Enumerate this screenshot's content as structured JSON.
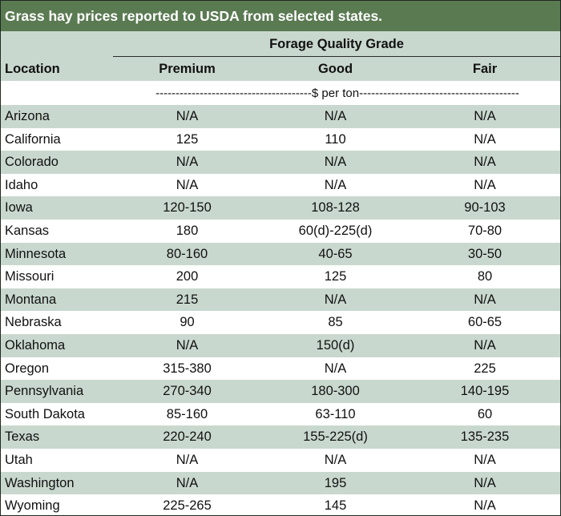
{
  "title": "Grass hay prices reported to USDA from selected states.",
  "header": {
    "group_label": "Forage Quality Grade",
    "location_label": "Location",
    "columns": [
      "Premium",
      "Good",
      "Fair"
    ]
  },
  "unit_label": "---------------------------------------$ per ton----------------------------------------",
  "colors": {
    "title_bg": "#5a7a52",
    "shade": "#c9d8ce",
    "plain": "#ffffff"
  },
  "rows": [
    {
      "location": "Arizona",
      "premium": "N/A",
      "good": "N/A",
      "fair": "N/A"
    },
    {
      "location": "California",
      "premium": "125",
      "good": "110",
      "fair": "N/A"
    },
    {
      "location": "Colorado",
      "premium": "N/A",
      "good": "N/A",
      "fair": "N/A"
    },
    {
      "location": "Idaho",
      "premium": "N/A",
      "good": "N/A",
      "fair": "N/A"
    },
    {
      "location": "Iowa",
      "premium": "120-150",
      "good": "108-128",
      "fair": "90-103"
    },
    {
      "location": "Kansas",
      "premium": "180",
      "good": "60(d)-225(d)",
      "fair": "70-80"
    },
    {
      "location": "Minnesota",
      "premium": "80-160",
      "good": "40-65",
      "fair": "30-50"
    },
    {
      "location": "Missouri",
      "premium": "200",
      "good": "125",
      "fair": "80"
    },
    {
      "location": "Montana",
      "premium": "215",
      "good": "N/A",
      "fair": "N/A"
    },
    {
      "location": "Nebraska",
      "premium": "90",
      "good": "85",
      "fair": "60-65"
    },
    {
      "location": "Oklahoma",
      "premium": "N/A",
      "good": "150(d)",
      "fair": "N/A"
    },
    {
      "location": "Oregon",
      "premium": "315-380",
      "good": "N/A",
      "fair": "225"
    },
    {
      "location": "Pennsylvania",
      "premium": "270-340",
      "good": "180-300",
      "fair": "140-195"
    },
    {
      "location": "South Dakota",
      "premium": "85-160",
      "good": "63-110",
      "fair": "60"
    },
    {
      "location": "Texas",
      "premium": "220-240",
      "good": "155-225(d)",
      "fair": "135-235"
    },
    {
      "location": "Utah",
      "premium": "N/A",
      "good": "N/A",
      "fair": "N/A"
    },
    {
      "location": "Washington",
      "premium": "N/A",
      "good": "195",
      "fair": "N/A"
    },
    {
      "location": "Wyoming",
      "premium": "225-265",
      "good": "145",
      "fair": "N/A"
    }
  ]
}
